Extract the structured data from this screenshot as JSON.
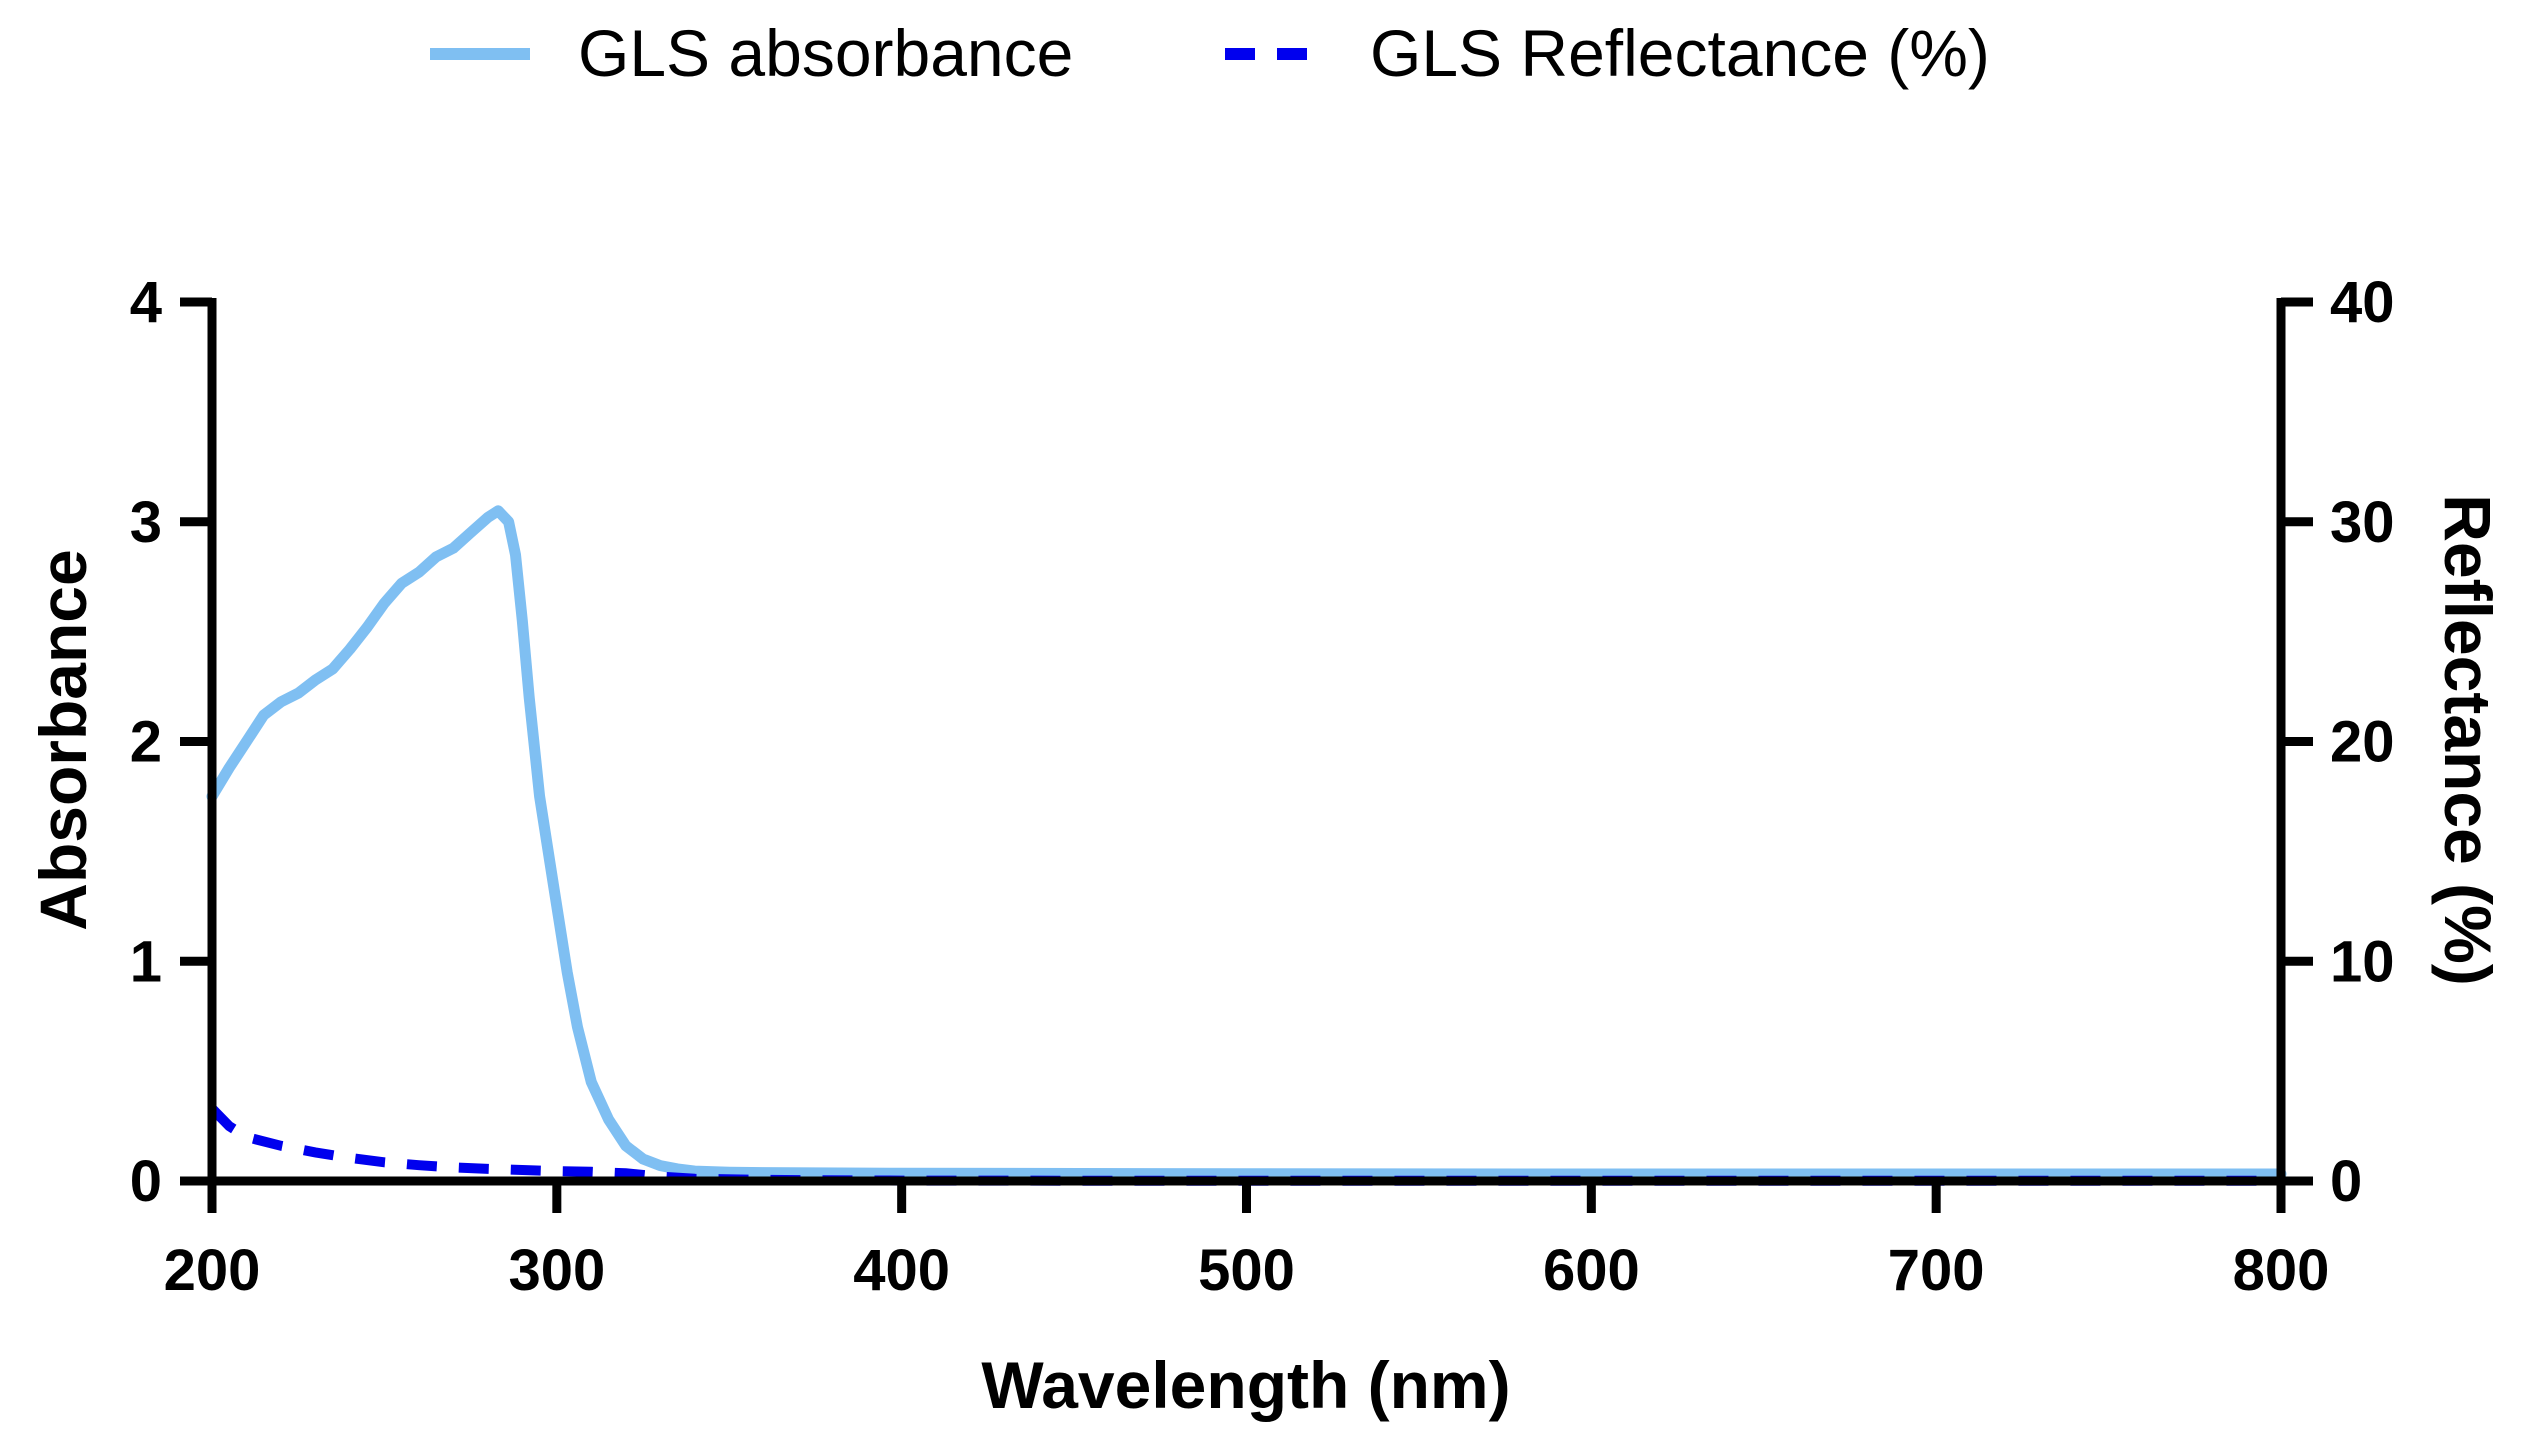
{
  "chart_data": {
    "type": "line",
    "title": "",
    "xlabel": "Wavelength (nm)",
    "ylabel": "Absorbance",
    "y2label": "Reflectance (%)",
    "xlim": [
      200,
      800
    ],
    "ylim": [
      0,
      4
    ],
    "y2lim": [
      0,
      40
    ],
    "xticks": [
      "200",
      "300",
      "400",
      "500",
      "600",
      "700",
      "800"
    ],
    "yticks": [
      "0",
      "1",
      "2",
      "3",
      "4"
    ],
    "y2ticks": [
      "0",
      "10",
      "20",
      "30",
      "40"
    ],
    "legend_position": "top-center",
    "series": [
      {
        "name": "GLS absorbance",
        "axis": "left",
        "style": "solid",
        "color": "#7fbff2",
        "x": [
          200,
          205,
          210,
          215,
          220,
          225,
          230,
          235,
          240,
          245,
          250,
          255,
          260,
          265,
          270,
          275,
          280,
          283,
          286,
          288,
          290,
          292,
          295,
          298,
          300,
          303,
          306,
          310,
          315,
          320,
          325,
          330,
          335,
          340,
          350,
          360,
          400,
          500,
          600,
          700,
          800
        ],
        "values": [
          1.75,
          1.88,
          2.0,
          2.12,
          2.18,
          2.22,
          2.28,
          2.33,
          2.42,
          2.52,
          2.63,
          2.72,
          2.77,
          2.84,
          2.88,
          2.95,
          3.02,
          3.05,
          3.0,
          2.85,
          2.55,
          2.2,
          1.75,
          1.45,
          1.25,
          0.95,
          0.7,
          0.45,
          0.28,
          0.16,
          0.1,
          0.07,
          0.055,
          0.045,
          0.04,
          0.038,
          0.035,
          0.033,
          0.032,
          0.032,
          0.032
        ]
      },
      {
        "name": "GLS Reflectance (%)",
        "axis": "right",
        "style": "dashed",
        "color": "#0000ee",
        "x": [
          200,
          205,
          210,
          220,
          230,
          240,
          250,
          260,
          270,
          280,
          290,
          300,
          310,
          320,
          330,
          340,
          360,
          400,
          500,
          600,
          700,
          800
        ],
        "values": [
          3.3,
          2.5,
          2.0,
          1.6,
          1.3,
          1.05,
          0.85,
          0.72,
          0.62,
          0.55,
          0.5,
          0.45,
          0.42,
          0.35,
          0.2,
          0.1,
          0.05,
          0.02,
          0.01,
          0.01,
          0.01,
          0.01
        ]
      }
    ]
  }
}
